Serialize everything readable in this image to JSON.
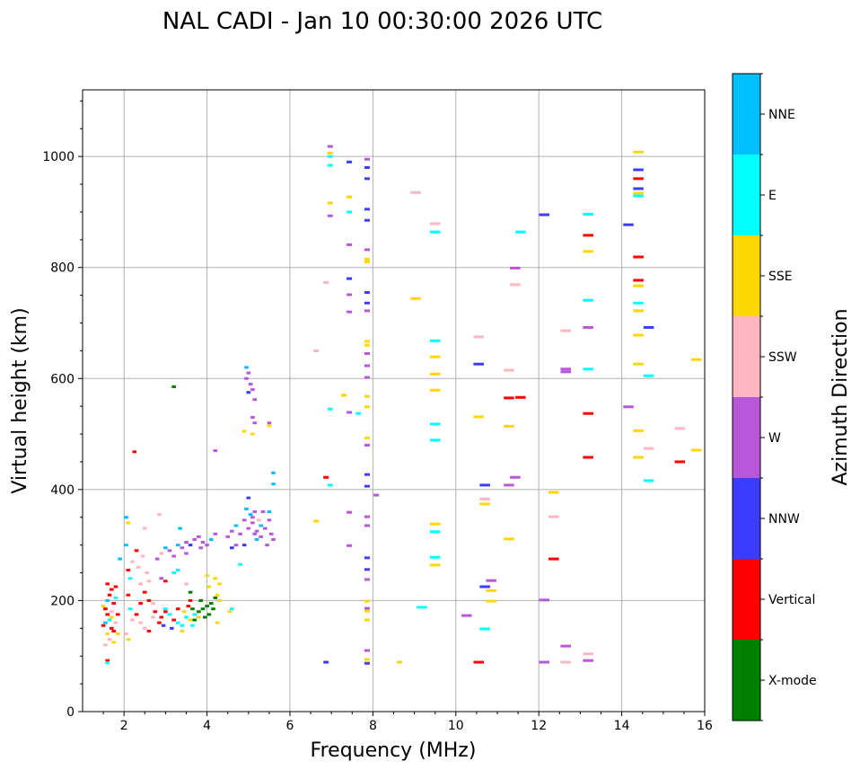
{
  "chart_data": {
    "type": "scatter",
    "title": "NAL CADI - Jan 10 00:30:00 2026 UTC",
    "xlabel": "Frequency (MHz)",
    "ylabel": "Virtual height (km)",
    "xlim": [
      1,
      16
    ],
    "ylim": [
      0,
      1120
    ],
    "xticks": [
      2,
      4,
      6,
      8,
      10,
      12,
      14,
      16
    ],
    "yticks": [
      0,
      200,
      400,
      600,
      800,
      1000
    ],
    "grid": true,
    "colorbar": {
      "label": "Azimuth Direction",
      "categories": [
        {
          "name": "X-mode",
          "color": "#008000"
        },
        {
          "name": "Vertical",
          "color": "#ff0000"
        },
        {
          "name": "NNW",
          "color": "#3c3cff"
        },
        {
          "name": "W",
          "color": "#b858d8"
        },
        {
          "name": "SSW",
          "color": "#ffb6c1"
        },
        {
          "name": "SSE",
          "color": "#ffd700"
        },
        {
          "name": "E",
          "color": "#00ffff"
        },
        {
          "name": "NNE",
          "color": "#00bfff"
        }
      ]
    },
    "point_fields": [
      "frequency_mhz",
      "height_km",
      "direction_index"
    ],
    "points": [
      [
        1.5,
        190,
        5
      ],
      [
        1.55,
        185,
        1
      ],
      [
        1.6,
        200,
        7
      ],
      [
        1.65,
        210,
        1
      ],
      [
        1.7,
        220,
        1
      ],
      [
        1.6,
        175,
        1
      ],
      [
        1.65,
        165,
        6
      ],
      [
        1.55,
        160,
        7
      ],
      [
        1.7,
        150,
        1
      ],
      [
        1.6,
        140,
        5
      ],
      [
        1.65,
        130,
        4
      ],
      [
        1.75,
        125,
        5
      ],
      [
        1.55,
        120,
        4
      ],
      [
        1.7,
        180,
        4
      ],
      [
        1.75,
        195,
        1
      ],
      [
        1.8,
        205,
        6
      ],
      [
        1.6,
        230,
        1
      ],
      [
        1.7,
        170,
        5
      ],
      [
        1.5,
        155,
        1
      ],
      [
        1.6,
        92,
        1
      ],
      [
        1.6,
        88,
        6
      ],
      [
        1.75,
        145,
        1
      ],
      [
        1.8,
        160,
        4
      ],
      [
        1.85,
        140,
        5
      ],
      [
        1.85,
        175,
        1
      ],
      [
        1.9,
        275,
        7
      ],
      [
        1.8,
        225,
        1
      ],
      [
        2.05,
        350,
        7
      ],
      [
        2.1,
        340,
        5
      ],
      [
        2.05,
        300,
        7
      ],
      [
        2.1,
        255,
        1
      ],
      [
        2.15,
        240,
        6
      ],
      [
        2.2,
        270,
        4
      ],
      [
        2.3,
        290,
        1
      ],
      [
        2.25,
        468,
        1
      ],
      [
        2.35,
        260,
        4
      ],
      [
        2.4,
        230,
        4
      ],
      [
        2.45,
        280,
        4
      ],
      [
        2.5,
        215,
        1
      ],
      [
        2.55,
        250,
        4
      ],
      [
        2.6,
        200,
        1
      ],
      [
        2.7,
        195,
        4
      ],
      [
        2.3,
        175,
        1
      ],
      [
        2.4,
        160,
        4
      ],
      [
        2.5,
        150,
        4
      ],
      [
        2.6,
        145,
        1
      ],
      [
        2.2,
        165,
        4
      ],
      [
        2.1,
        130,
        5
      ],
      [
        2.05,
        140,
        4
      ],
      [
        2.15,
        185,
        6
      ],
      [
        2.7,
        170,
        4
      ],
      [
        2.75,
        180,
        1
      ],
      [
        2.6,
        235,
        4
      ],
      [
        2.5,
        330,
        4
      ],
      [
        2.1,
        210,
        1
      ],
      [
        2.4,
        195,
        1
      ],
      [
        2.85,
        160,
        1
      ],
      [
        2.9,
        170,
        1
      ],
      [
        3.0,
        180,
        1
      ],
      [
        3.1,
        175,
        6
      ],
      [
        3.2,
        165,
        1
      ],
      [
        3.3,
        160,
        6
      ],
      [
        3.4,
        155,
        6
      ],
      [
        3.5,
        170,
        6
      ],
      [
        3.6,
        165,
        5
      ],
      [
        3.7,
        175,
        6
      ],
      [
        3.8,
        170,
        5
      ],
      [
        3.3,
        185,
        1
      ],
      [
        3.45,
        180,
        5
      ],
      [
        3.15,
        150,
        2
      ],
      [
        2.95,
        155,
        2
      ],
      [
        3.55,
        190,
        1
      ],
      [
        3.6,
        200,
        1
      ],
      [
        3.4,
        145,
        5
      ],
      [
        3.0,
        185,
        6
      ],
      [
        3.65,
        155,
        6
      ],
      [
        2.9,
        240,
        3
      ],
      [
        3.0,
        235,
        1
      ],
      [
        3.2,
        250,
        6
      ],
      [
        3.3,
        255,
        6
      ],
      [
        3.5,
        230,
        4
      ],
      [
        3.2,
        585,
        0
      ],
      [
        2.85,
        355,
        4
      ],
      [
        3.8,
        180,
        0
      ],
      [
        3.9,
        185,
        0
      ],
      [
        4.0,
        190,
        0
      ],
      [
        4.1,
        195,
        0
      ],
      [
        4.2,
        205,
        0
      ],
      [
        4.05,
        175,
        0
      ],
      [
        3.95,
        170,
        0
      ],
      [
        3.7,
        165,
        0
      ],
      [
        3.85,
        200,
        0
      ],
      [
        4.15,
        185,
        0
      ],
      [
        3.6,
        215,
        0
      ],
      [
        3.65,
        185,
        0
      ],
      [
        4.2,
        240,
        5
      ],
      [
        4.3,
        230,
        5
      ],
      [
        4.25,
        210,
        5
      ],
      [
        4.3,
        200,
        5
      ],
      [
        4.55,
        180,
        5
      ],
      [
        4.6,
        185,
        6
      ],
      [
        4.0,
        245,
        5
      ],
      [
        4.25,
        160,
        5
      ],
      [
        4.05,
        225,
        5
      ],
      [
        2.8,
        275,
        3
      ],
      [
        2.9,
        285,
        4
      ],
      [
        3.0,
        295,
        7
      ],
      [
        3.1,
        290,
        3
      ],
      [
        3.2,
        280,
        3
      ],
      [
        3.3,
        300,
        7
      ],
      [
        3.4,
        295,
        3
      ],
      [
        3.5,
        305,
        3
      ],
      [
        3.6,
        300,
        2
      ],
      [
        3.7,
        310,
        3
      ],
      [
        3.8,
        315,
        3
      ],
      [
        3.9,
        305,
        3
      ],
      [
        4.0,
        300,
        3
      ],
      [
        4.1,
        310,
        7
      ],
      [
        4.2,
        320,
        3
      ],
      [
        3.5,
        285,
        3
      ],
      [
        3.85,
        295,
        3
      ],
      [
        3.35,
        330,
        7
      ],
      [
        4.2,
        470,
        3
      ],
      [
        4.8,
        265,
        6
      ],
      [
        4.5,
        315,
        3
      ],
      [
        4.6,
        325,
        3
      ],
      [
        4.7,
        335,
        7
      ],
      [
        4.8,
        320,
        3
      ],
      [
        4.9,
        345,
        3
      ],
      [
        5.0,
        330,
        3
      ],
      [
        5.1,
        340,
        3
      ],
      [
        5.2,
        325,
        3
      ],
      [
        5.3,
        315,
        3
      ],
      [
        5.4,
        330,
        3
      ],
      [
        5.5,
        345,
        3
      ],
      [
        5.6,
        310,
        3
      ],
      [
        4.95,
        365,
        7
      ],
      [
        5.05,
        355,
        7
      ],
      [
        4.9,
        300,
        2
      ],
      [
        5.2,
        310,
        7
      ],
      [
        5.35,
        360,
        3
      ],
      [
        5.45,
        300,
        3
      ],
      [
        5.0,
        385,
        2
      ],
      [
        4.7,
        300,
        3
      ],
      [
        5.15,
        320,
        3
      ],
      [
        5.25,
        345,
        4
      ],
      [
        5.5,
        360,
        7
      ],
      [
        4.6,
        295,
        2
      ],
      [
        5.1,
        350,
        3
      ],
      [
        5.3,
        335,
        7
      ],
      [
        5.55,
        320,
        3
      ],
      [
        4.95,
        620,
        7
      ],
      [
        4.95,
        600,
        3
      ],
      [
        5.0,
        610,
        3
      ],
      [
        5.05,
        590,
        3
      ],
      [
        5.1,
        580,
        3
      ],
      [
        5.0,
        575,
        2
      ],
      [
        5.1,
        530,
        3
      ],
      [
        5.15,
        520,
        3
      ],
      [
        5.1,
        500,
        5
      ],
      [
        4.9,
        505,
        5
      ],
      [
        5.15,
        562,
        3
      ],
      [
        5.5,
        520,
        3
      ],
      [
        5.5,
        515,
        5
      ],
      [
        5.6,
        430,
        7
      ],
      [
        5.6,
        410,
        7
      ],
      [
        5.15,
        360,
        3
      ],
      [
        7.86,
        995,
        3
      ],
      [
        7.86,
        980,
        2
      ],
      [
        7.86,
        960,
        2
      ],
      [
        7.86,
        905,
        2
      ],
      [
        7.86,
        885,
        2
      ],
      [
        7.86,
        832,
        3
      ],
      [
        7.86,
        815,
        5
      ],
      [
        7.86,
        810,
        5
      ],
      [
        7.86,
        755,
        2
      ],
      [
        7.86,
        736,
        2
      ],
      [
        7.86,
        722,
        3
      ],
      [
        7.86,
        667,
        5
      ],
      [
        7.86,
        660,
        5
      ],
      [
        7.86,
        645,
        3
      ],
      [
        7.86,
        623,
        3
      ],
      [
        7.86,
        602,
        3
      ],
      [
        7.86,
        568,
        5
      ],
      [
        7.86,
        549,
        5
      ],
      [
        7.86,
        493,
        5
      ],
      [
        7.86,
        480,
        3
      ],
      [
        7.86,
        427,
        2
      ],
      [
        7.86,
        406,
        2
      ],
      [
        7.86,
        351,
        3
      ],
      [
        7.86,
        335,
        3
      ],
      [
        7.86,
        277,
        2
      ],
      [
        7.86,
        256,
        2
      ],
      [
        7.86,
        238,
        3
      ],
      [
        7.86,
        199,
        5
      ],
      [
        7.86,
        186,
        3
      ],
      [
        7.86,
        181,
        5
      ],
      [
        7.86,
        165,
        5
      ],
      [
        7.86,
        110,
        3
      ],
      [
        7.86,
        94,
        5
      ],
      [
        7.86,
        87,
        2
      ],
      [
        7.43,
        990,
        2
      ],
      [
        7.43,
        927,
        5
      ],
      [
        7.43,
        900,
        6
      ],
      [
        7.43,
        841,
        3
      ],
      [
        7.43,
        780,
        2
      ],
      [
        7.43,
        751,
        3
      ],
      [
        7.43,
        720,
        3
      ],
      [
        7.43,
        539,
        3
      ],
      [
        7.43,
        359,
        3
      ],
      [
        7.43,
        299,
        3
      ],
      [
        6.97,
        1018,
        3
      ],
      [
        6.97,
        1006,
        5
      ],
      [
        6.97,
        1000,
        6
      ],
      [
        6.97,
        984,
        6
      ],
      [
        6.97,
        916,
        5
      ],
      [
        6.97,
        893,
        3
      ],
      [
        6.97,
        545,
        6
      ],
      [
        6.97,
        408,
        6
      ],
      [
        6.87,
        773,
        4
      ],
      [
        6.87,
        422,
        1
      ],
      [
        6.87,
        89,
        2
      ],
      [
        6.63,
        650,
        4
      ],
      [
        6.63,
        343,
        5
      ],
      [
        7.3,
        570,
        5
      ],
      [
        7.65,
        537,
        6
      ],
      [
        8.08,
        390,
        3
      ],
      [
        8.64,
        89,
        5
      ],
      [
        9.03,
        935,
        4
      ],
      [
        9.03,
        744,
        5
      ],
      [
        9.18,
        188,
        6
      ],
      [
        9.5,
        879,
        4
      ],
      [
        9.5,
        864,
        6
      ],
      [
        9.5,
        668,
        6
      ],
      [
        9.5,
        639,
        5
      ],
      [
        9.5,
        608,
        5
      ],
      [
        9.5,
        579,
        5
      ],
      [
        9.5,
        518,
        6
      ],
      [
        9.5,
        489,
        6
      ],
      [
        9.5,
        338,
        5
      ],
      [
        9.5,
        324,
        6
      ],
      [
        9.5,
        278,
        6
      ],
      [
        9.5,
        264,
        5
      ],
      [
        10.26,
        173,
        3
      ],
      [
        10.55,
        675,
        4
      ],
      [
        10.55,
        531,
        5
      ],
      [
        10.55,
        626,
        2
      ],
      [
        10.55,
        89,
        1
      ],
      [
        10.7,
        408,
        2
      ],
      [
        10.7,
        383,
        4
      ],
      [
        10.7,
        374,
        5
      ],
      [
        10.7,
        225,
        2
      ],
      [
        10.7,
        149,
        6
      ],
      [
        10.85,
        236,
        3
      ],
      [
        10.85,
        218,
        5
      ],
      [
        10.85,
        199,
        5
      ],
      [
        11.28,
        615,
        4
      ],
      [
        11.28,
        565,
        1
      ],
      [
        11.28,
        514,
        5
      ],
      [
        11.28,
        408,
        3
      ],
      [
        11.28,
        311,
        5
      ],
      [
        11.43,
        799,
        3
      ],
      [
        11.43,
        769,
        4
      ],
      [
        11.43,
        422,
        3
      ],
      [
        11.56,
        864,
        6
      ],
      [
        11.56,
        566,
        1
      ],
      [
        12.13,
        895,
        2
      ],
      [
        12.13,
        201,
        3
      ],
      [
        12.13,
        89,
        3
      ],
      [
        12.36,
        395,
        5
      ],
      [
        12.36,
        351,
        4
      ],
      [
        12.36,
        275,
        1
      ],
      [
        12.65,
        686,
        4
      ],
      [
        12.65,
        617,
        3
      ],
      [
        12.65,
        612,
        3
      ],
      [
        12.65,
        118,
        3
      ],
      [
        12.65,
        89,
        4
      ],
      [
        13.19,
        896,
        6
      ],
      [
        13.19,
        858,
        1
      ],
      [
        13.19,
        829,
        5
      ],
      [
        13.19,
        741,
        6
      ],
      [
        13.19,
        692,
        3
      ],
      [
        13.19,
        617,
        6
      ],
      [
        13.19,
        537,
        1
      ],
      [
        13.19,
        458,
        1
      ],
      [
        13.19,
        104,
        4
      ],
      [
        13.19,
        92,
        3
      ],
      [
        14.16,
        877,
        2
      ],
      [
        14.16,
        549,
        3
      ],
      [
        14.4,
        1008,
        5
      ],
      [
        14.4,
        976,
        2
      ],
      [
        14.4,
        960,
        1
      ],
      [
        14.4,
        942,
        2
      ],
      [
        14.4,
        934,
        5
      ],
      [
        14.4,
        929,
        6
      ],
      [
        14.4,
        819,
        1
      ],
      [
        14.4,
        777,
        1
      ],
      [
        14.4,
        767,
        5
      ],
      [
        14.4,
        736,
        6
      ],
      [
        14.4,
        722,
        5
      ],
      [
        14.4,
        678,
        5
      ],
      [
        14.4,
        626,
        5
      ],
      [
        14.4,
        506,
        5
      ],
      [
        14.4,
        458,
        5
      ],
      [
        14.65,
        692,
        2
      ],
      [
        14.65,
        605,
        6
      ],
      [
        14.65,
        474,
        4
      ],
      [
        14.65,
        416,
        6
      ],
      [
        15.4,
        510,
        4
      ],
      [
        15.4,
        450,
        1
      ],
      [
        15.8,
        634,
        5
      ],
      [
        15.8,
        471,
        5
      ]
    ]
  }
}
